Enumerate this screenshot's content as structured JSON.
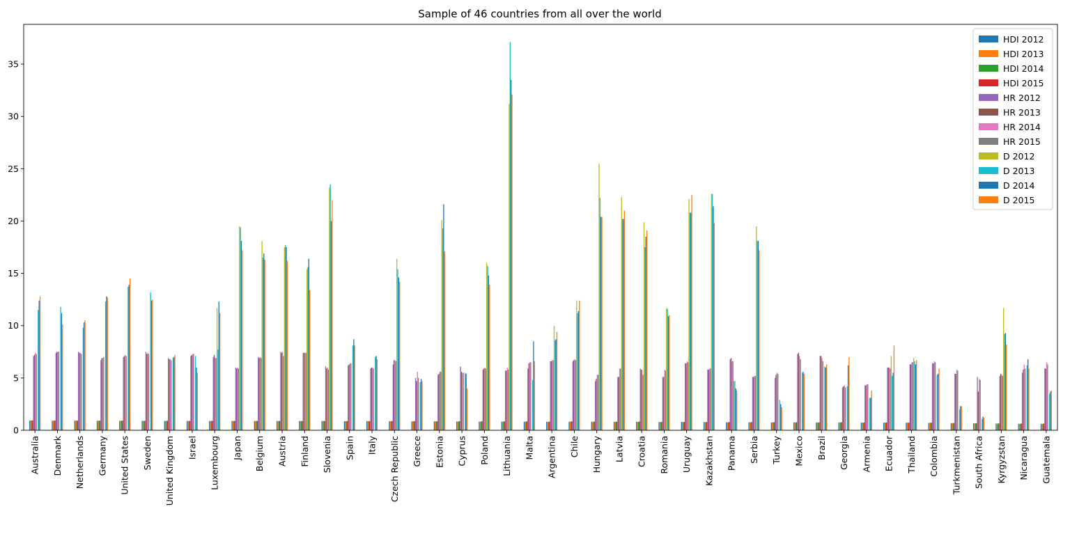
{
  "chart_data": {
    "type": "bar",
    "title": "Sample of 46 countries from all over the world",
    "xlabel": "",
    "ylabel": "",
    "ylim": [
      0,
      38.8
    ],
    "yticks": [
      0,
      5,
      10,
      15,
      20,
      25,
      30,
      35
    ],
    "grid": false,
    "legend_position": "top-right",
    "categories": [
      "Australia",
      "Denmark",
      "Netherlands",
      "Germany",
      "United States",
      "Sweden",
      "United Kingdom",
      "Israel",
      "Luxembourg",
      "Japan",
      "Belgium",
      "Austria",
      "Finland",
      "Slovenia",
      "Spain",
      "Italy",
      "Czech Republic",
      "Greece",
      "Estonia",
      "Cyprus",
      "Poland",
      "Lithuania",
      "Malta",
      "Argentina",
      "Chile",
      "Hungary",
      "Latvia",
      "Croatia",
      "Romania",
      "Uruguay",
      "Kazakhstan",
      "Panama",
      "Serbia",
      "Turkey",
      "Mexico",
      "Brazil",
      "Georgia",
      "Armenia",
      "Ecuador",
      "Thailand",
      "Colombia",
      "Turkmenistan",
      "South Africa",
      "Kyrgyzstan",
      "Nicaragua",
      "Guatemala"
    ],
    "series": [
      {
        "name": "HDI 2012",
        "color": "#1f77b4",
        "values": [
          0.93,
          0.92,
          0.92,
          0.91,
          0.91,
          0.9,
          0.89,
          0.89,
          0.89,
          0.89,
          0.88,
          0.88,
          0.88,
          0.88,
          0.87,
          0.87,
          0.86,
          0.85,
          0.85,
          0.84,
          0.83,
          0.83,
          0.82,
          0.81,
          0.82,
          0.81,
          0.81,
          0.81,
          0.79,
          0.79,
          0.78,
          0.76,
          0.76,
          0.75,
          0.75,
          0.74,
          0.74,
          0.73,
          0.73,
          0.72,
          0.71,
          0.68,
          0.66,
          0.64,
          0.62,
          0.61
        ]
      },
      {
        "name": "HDI 2013",
        "color": "#ff7f0e",
        "values": [
          0.93,
          0.92,
          0.92,
          0.91,
          0.91,
          0.9,
          0.89,
          0.89,
          0.89,
          0.89,
          0.88,
          0.88,
          0.88,
          0.88,
          0.87,
          0.87,
          0.86,
          0.85,
          0.85,
          0.84,
          0.83,
          0.83,
          0.82,
          0.81,
          0.82,
          0.81,
          0.81,
          0.81,
          0.79,
          0.79,
          0.78,
          0.76,
          0.76,
          0.75,
          0.75,
          0.74,
          0.74,
          0.73,
          0.73,
          0.72,
          0.71,
          0.68,
          0.66,
          0.64,
          0.62,
          0.61
        ]
      },
      {
        "name": "HDI 2014",
        "color": "#2ca02c",
        "values": [
          0.94,
          0.92,
          0.92,
          0.92,
          0.91,
          0.9,
          0.9,
          0.89,
          0.89,
          0.89,
          0.89,
          0.88,
          0.88,
          0.88,
          0.87,
          0.87,
          0.87,
          0.86,
          0.86,
          0.84,
          0.84,
          0.84,
          0.83,
          0.82,
          0.83,
          0.82,
          0.82,
          0.81,
          0.79,
          0.79,
          0.79,
          0.77,
          0.77,
          0.76,
          0.76,
          0.75,
          0.75,
          0.73,
          0.74,
          0.72,
          0.72,
          0.69,
          0.66,
          0.65,
          0.63,
          0.62
        ]
      },
      {
        "name": "HDI 2015",
        "color": "#d62728",
        "values": [
          0.94,
          0.93,
          0.92,
          0.92,
          0.92,
          0.91,
          0.91,
          0.9,
          0.9,
          0.9,
          0.9,
          0.89,
          0.89,
          0.89,
          0.88,
          0.88,
          0.88,
          0.87,
          0.86,
          0.86,
          0.86,
          0.85,
          0.86,
          0.83,
          0.85,
          0.84,
          0.83,
          0.83,
          0.8,
          0.8,
          0.79,
          0.79,
          0.78,
          0.77,
          0.76,
          0.75,
          0.77,
          0.74,
          0.74,
          0.74,
          0.73,
          0.69,
          0.67,
          0.66,
          0.64,
          0.64
        ]
      },
      {
        "name": "HR 2012",
        "color": "#9467bd",
        "values": [
          7.1,
          7.4,
          7.5,
          6.7,
          7.0,
          7.5,
          6.9,
          7.1,
          7.0,
          6.0,
          7.0,
          7.5,
          7.4,
          6.1,
          6.2,
          5.9,
          6.3,
          5.0,
          5.3,
          6.1,
          5.8,
          5.7,
          5.9,
          6.6,
          6.6,
          4.7,
          5.1,
          5.9,
          5.1,
          6.4,
          5.8,
          6.8,
          5.1,
          5.0,
          7.3,
          7.1,
          4.1,
          4.3,
          6.0,
          6.3,
          6.4,
          5.4,
          5.1,
          5.2,
          5.5,
          5.9
        ]
      },
      {
        "name": "HR 2013",
        "color": "#8c564b",
        "values": [
          7.2,
          7.5,
          7.4,
          6.9,
          7.1,
          7.3,
          6.8,
          7.2,
          7.2,
          5.9,
          6.9,
          7.4,
          7.4,
          5.9,
          6.3,
          6.0,
          6.7,
          4.7,
          5.4,
          5.6,
          5.9,
          5.7,
          6.4,
          6.6,
          6.7,
          4.9,
          5.1,
          5.8,
          5.1,
          6.4,
          5.8,
          6.9,
          5.1,
          5.3,
          7.4,
          7.1,
          4.2,
          4.3,
          6.0,
          6.3,
          6.4,
          5.4,
          3.7,
          5.4,
          5.8,
          5.9
        ]
      },
      {
        "name": "HR 2014",
        "color": "#e377c2",
        "values": [
          7.4,
          7.5,
          7.4,
          6.9,
          7.2,
          7.4,
          6.8,
          7.3,
          6.9,
          6.0,
          7.0,
          7.5,
          7.4,
          6.0,
          6.4,
          6.0,
          6.7,
          5.6,
          5.6,
          5.5,
          6.0,
          6.0,
          6.5,
          6.7,
          6.8,
          5.3,
          5.9,
          5.8,
          5.8,
          6.6,
          5.9,
          6.6,
          5.2,
          5.5,
          7.1,
          6.9,
          4.3,
          4.4,
          6.0,
          6.5,
          6.6,
          5.8,
          4.9,
          5.3,
          6.3,
          6.5
        ]
      },
      {
        "name": "HR 2015",
        "color": "#7f7f7f",
        "values": [
          7.3,
          7.5,
          7.3,
          7.0,
          7.1,
          7.3,
          6.7,
          7.3,
          6.9,
          5.9,
          6.9,
          7.1,
          7.4,
          5.8,
          6.4,
          5.9,
          6.6,
          5.0,
          5.6,
          5.5,
          5.9,
          5.8,
          6.5,
          6.7,
          6.7,
          5.3,
          5.9,
          5.3,
          5.7,
          6.5,
          5.9,
          6.6,
          5.2,
          5.4,
          6.8,
          6.6,
          4.1,
          4.4,
          5.9,
          6.5,
          6.5,
          5.7,
          4.8,
          5.2,
          5.9,
          6.3
        ]
      },
      {
        "name": "D 2012",
        "color": "#bcbd22",
        "values": [
          0,
          0,
          0,
          0,
          0,
          0,
          0,
          0,
          11.7,
          19.5,
          18.1,
          17.5,
          15.4,
          23.2,
          0,
          0,
          16.4,
          0,
          20.1,
          0,
          16.0,
          31.2,
          0,
          10.0,
          12.4,
          25.5,
          22.3,
          19.9,
          11.7,
          22.1,
          22.6,
          4.7,
          19.5,
          0,
          0,
          0,
          0,
          0,
          7.1,
          6.9,
          0,
          0,
          0,
          11.7,
          0,
          0
        ]
      },
      {
        "name": "D 2013",
        "color": "#17becf",
        "values": [
          11.5,
          11.8,
          9.8,
          12.3,
          13.7,
          13.2,
          6.9,
          7.1,
          7.7,
          19.4,
          16.5,
          17.7,
          15.6,
          23.5,
          8.1,
          7.0,
          15.4,
          4.6,
          19.3,
          5.5,
          15.7,
          37.1,
          4.8,
          8.6,
          11.2,
          22.2,
          20.2,
          17.5,
          11.6,
          20.8,
          22.6,
          4.7,
          18.1,
          2.9,
          5.5,
          6.1,
          4.2,
          3.1,
          5.2,
          6.6,
          5.3,
          2.0,
          1.1,
          9.2,
          6.2,
          3.5
        ]
      },
      {
        "name": "D 2014",
        "color": "#1f77b4",
        "values": [
          12.4,
          11.2,
          10.3,
          12.8,
          13.9,
          12.4,
          7.0,
          6.0,
          12.3,
          18.1,
          16.9,
          17.5,
          16.4,
          20.0,
          8.7,
          7.1,
          14.6,
          4.9,
          21.6,
          5.4,
          14.8,
          33.5,
          8.5,
          8.7,
          11.4,
          20.4,
          20.2,
          18.5,
          10.9,
          20.8,
          21.4,
          4.0,
          18.1,
          2.5,
          5.6,
          6.0,
          6.2,
          3.1,
          5.5,
          6.3,
          5.4,
          2.3,
          1.3,
          9.3,
          6.8,
          3.7
        ]
      },
      {
        "name": "D 2015",
        "color": "#ff7f0e",
        "values": [
          12.8,
          10.1,
          10.5,
          12.7,
          14.5,
          12.5,
          7.2,
          5.5,
          11.2,
          17.2,
          16.3,
          16.2,
          13.4,
          22.0,
          8.1,
          6.8,
          14.2,
          4.7,
          17.1,
          4.0,
          13.9,
          32.1,
          6.6,
          9.4,
          12.4,
          20.4,
          21.0,
          19.1,
          11.0,
          22.5,
          19.8,
          3.8,
          17.2,
          2.2,
          5.4,
          6.3,
          7.0,
          3.8,
          8.1,
          6.7,
          5.9,
          2.3,
          1.2,
          8.2,
          5.9,
          3.8
        ]
      }
    ]
  }
}
